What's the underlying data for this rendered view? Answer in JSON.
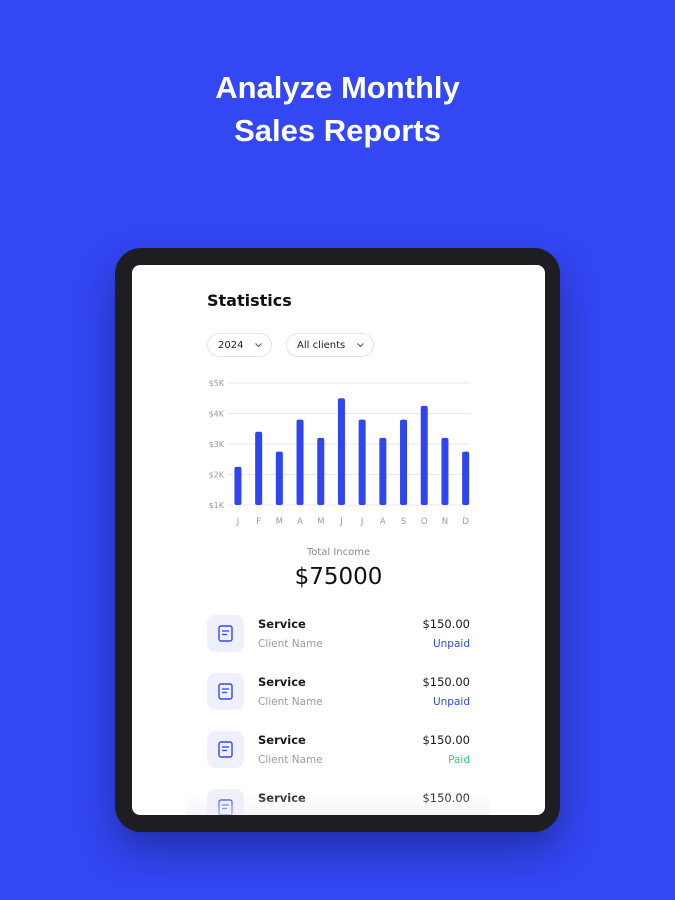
{
  "header": {
    "title_lines": [
      "Analyze Monthly",
      "Sales Reports"
    ]
  },
  "screen": {
    "title": "Statistics",
    "filters": [
      "2024",
      "All clients"
    ]
  },
  "chart_data": {
    "type": "bar",
    "categories": [
      "J",
      "F",
      "M",
      "A",
      "M",
      "J",
      "J",
      "A",
      "S",
      "O",
      "N",
      "D"
    ],
    "values": [
      2.25,
      3.4,
      2.75,
      3.8,
      3.2,
      4.5,
      3.8,
      3.2,
      3.8,
      4.25,
      3.2,
      2.75
    ],
    "color": "#2f45f0",
    "ylim": [
      1,
      5
    ],
    "yticks": [
      {
        "value": 1,
        "label": "$1K"
      },
      {
        "value": 2,
        "label": "$2K"
      },
      {
        "value": 3,
        "label": "$3K"
      },
      {
        "value": 4,
        "label": "$4K"
      },
      {
        "value": 5,
        "label": "$5K"
      }
    ],
    "grid": true
  },
  "summary": {
    "label": "Total Income",
    "value": "$75000"
  },
  "transactions": [
    {
      "service": "Service",
      "client": "Client Name",
      "amount": "$150.00",
      "status": "Unpaid",
      "status_color": "#3347f4"
    },
    {
      "service": "Service",
      "client": "Client Name",
      "amount": "$150.00",
      "status": "Unpaid",
      "status_color": "#3347f4"
    },
    {
      "service": "Service",
      "client": "Client Name",
      "amount": "$150.00",
      "status": "Paid",
      "status_color": "#2ed47a"
    },
    {
      "service": "Service",
      "amount": "$150.00"
    }
  ]
}
